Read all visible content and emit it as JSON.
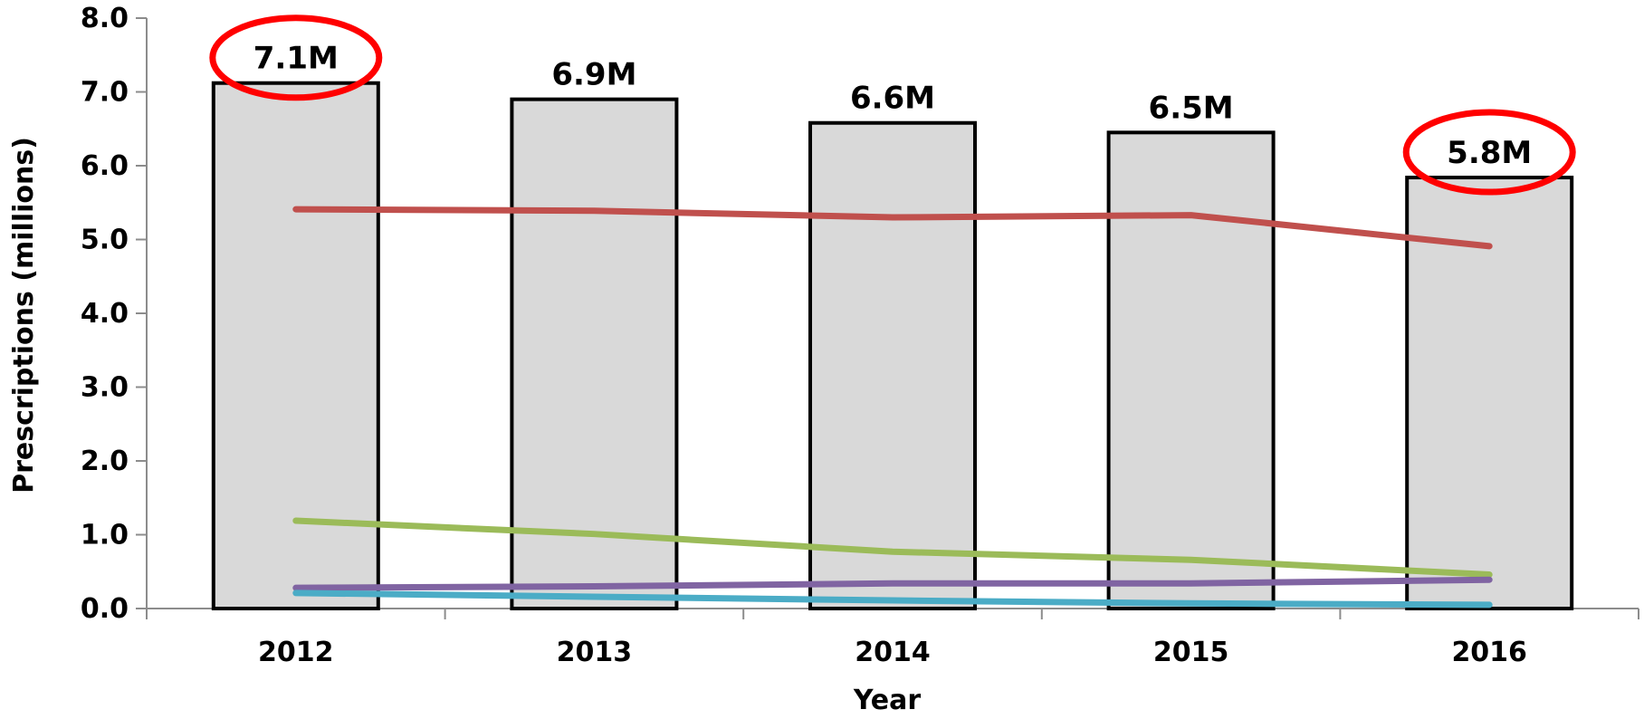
{
  "chart_data": {
    "type": "bar",
    "title": "",
    "xlabel": "Year",
    "ylabel": "Prescriptions (millions)",
    "ylim": [
      0,
      8
    ],
    "yticks": [
      "0.0",
      "1.0",
      "2.0",
      "3.0",
      "4.0",
      "5.0",
      "6.0",
      "7.0",
      "8.0"
    ],
    "categories": [
      "2012",
      "2013",
      "2014",
      "2015",
      "2016"
    ],
    "grid": false,
    "legend": "none",
    "bars": {
      "values": [
        7.12,
        6.9,
        6.58,
        6.45,
        5.84
      ],
      "labels": [
        "7.1M",
        "6.9M",
        "6.6M",
        "6.5M",
        "5.8M"
      ],
      "fill": "#d9d9d9",
      "edge": "#000000"
    },
    "series": [
      {
        "type": "line",
        "color": "#c0504d",
        "values": [
          5.41,
          5.39,
          5.3,
          5.33,
          4.91
        ]
      },
      {
        "type": "line",
        "color": "#9bbb59",
        "values": [
          1.19,
          1.01,
          0.77,
          0.66,
          0.46
        ]
      },
      {
        "type": "line",
        "color": "#8064a2",
        "values": [
          0.28,
          0.3,
          0.34,
          0.34,
          0.39
        ]
      },
      {
        "type": "line",
        "color": "#4bacc6",
        "values": [
          0.21,
          0.16,
          0.11,
          0.07,
          0.05
        ]
      }
    ],
    "highlighted_labels": [
      "7.1M",
      "5.8M"
    ],
    "highlight_color": "#ff0000"
  }
}
